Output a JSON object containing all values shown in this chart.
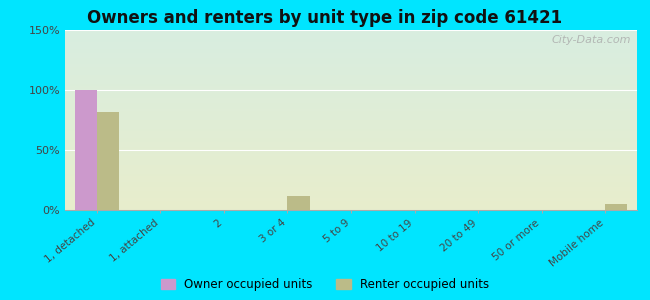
{
  "title": "Owners and renters by unit type in zip code 61421",
  "categories": [
    "1, detached",
    "1, attached",
    "2",
    "3 or 4",
    "5 to 9",
    "10 to 19",
    "20 to 49",
    "50 or more",
    "Mobile home"
  ],
  "owner_values": [
    100,
    0,
    0,
    0,
    0,
    0,
    0,
    0,
    0
  ],
  "renter_values": [
    82,
    0,
    0,
    12,
    0,
    0,
    0,
    0,
    5
  ],
  "owner_color": "#cc99cc",
  "renter_color": "#bbbb88",
  "grad_top": "#d8ede0",
  "grad_bottom": "#e8eecc",
  "outer_background": "#00e5ff",
  "ylim": [
    0,
    150
  ],
  "yticks": [
    0,
    50,
    100,
    150
  ],
  "ytick_labels": [
    "0%",
    "50%",
    "100%",
    "150%"
  ],
  "bar_width": 0.35,
  "legend_owner": "Owner occupied units",
  "legend_renter": "Renter occupied units",
  "watermark": "City-Data.com"
}
